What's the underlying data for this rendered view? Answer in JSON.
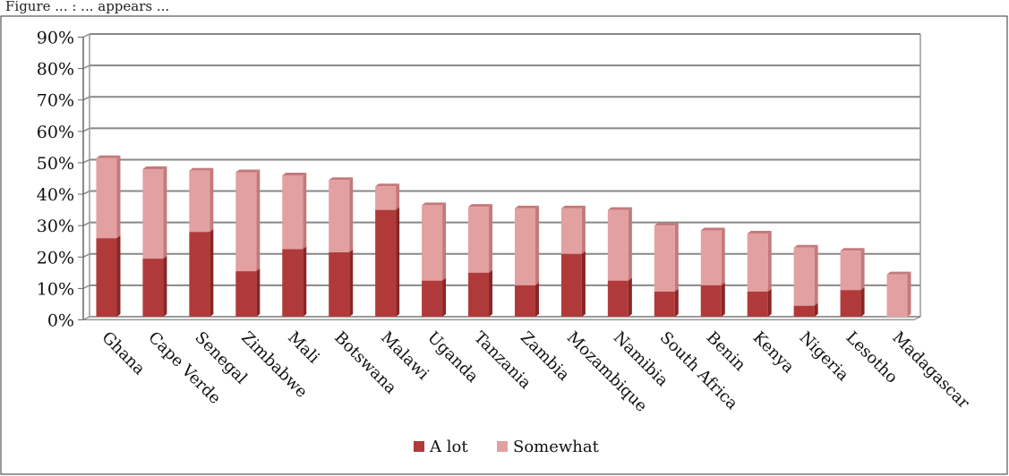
{
  "caption": "Figure ... : ... appears ...",
  "chart_data": {
    "type": "bar",
    "stacked": true,
    "categories": [
      "Ghana",
      "Cape Verde",
      "Senegal",
      "Zimbabwe",
      "Mali",
      "Botswana",
      "Malawi",
      "Uganda",
      "Tanzania",
      "Zambia",
      "Mozambique",
      "Namibia",
      "South Africa",
      "Benin",
      "Kenya",
      "Nigeria",
      "Lesotho",
      "Madagascar"
    ],
    "series": [
      {
        "name": "A lot",
        "color": "#b03a3a",
        "values": [
          25,
          18.5,
          27,
          14.5,
          21.5,
          20.5,
          34,
          11.5,
          14,
          10,
          20,
          11.5,
          8,
          10,
          8,
          3.5,
          8.5,
          0
        ]
      },
      {
        "name": "Somewhat",
        "color": "#e3a0a0",
        "values": [
          25.5,
          28.5,
          19.5,
          31.5,
          23.5,
          23,
          7.5,
          24,
          21,
          24.5,
          14.5,
          22.5,
          21,
          17.5,
          18.5,
          18.5,
          12.5,
          13.5
        ]
      }
    ],
    "yticks": [
      "0%",
      "10%",
      "20%",
      "30%",
      "40%",
      "50%",
      "60%",
      "70%",
      "80%",
      "90%"
    ],
    "ylim": [
      0,
      90
    ],
    "grid": true,
    "legend_position": "bottom"
  }
}
